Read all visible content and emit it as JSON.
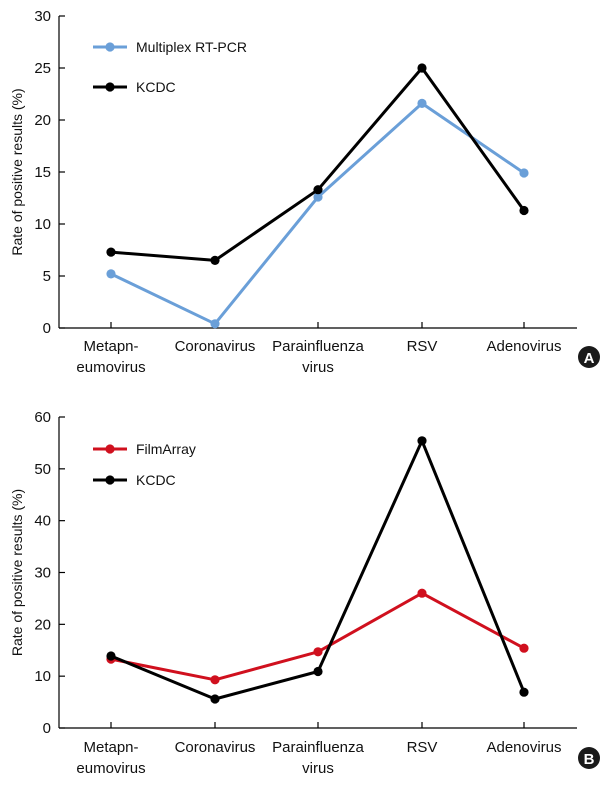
{
  "chart_data": [
    {
      "type": "line",
      "panel_label": "A",
      "categories": [
        [
          "Metapn-",
          "eumovirus"
        ],
        [
          "Coronavirus"
        ],
        [
          "Parainfluenza",
          "virus"
        ],
        [
          "RSV"
        ],
        [
          "Adenovirus"
        ]
      ],
      "ylabel": "Rate of positive results (%)",
      "ylim": [
        0,
        30
      ],
      "yticks": [
        "0",
        "5",
        "10",
        "15",
        "20",
        "25",
        "30"
      ],
      "legend_position": "top-left",
      "series": [
        {
          "name": "Multiplex RT-PCR",
          "color": "#6a9fd8",
          "values": [
            5.2,
            0.4,
            12.6,
            21.6,
            14.9
          ]
        },
        {
          "name": "KCDC",
          "color": "#000000",
          "values": [
            7.3,
            6.5,
            13.3,
            25.0,
            11.3
          ]
        }
      ]
    },
    {
      "type": "line",
      "panel_label": "B",
      "categories": [
        [
          "Metapn-",
          "eumovirus"
        ],
        [
          "Coronavirus"
        ],
        [
          "Parainfluenza",
          "virus"
        ],
        [
          "RSV"
        ],
        [
          "Adenovirus"
        ]
      ],
      "ylabel": "Rate of positive results (%)",
      "ylim": [
        0,
        60
      ],
      "yticks": [
        "0",
        "10",
        "20",
        "30",
        "40",
        "50",
        "60"
      ],
      "legend_position": "top-left",
      "series": [
        {
          "name": "FilmArray",
          "color": "#d0101e",
          "values": [
            13.3,
            9.3,
            14.7,
            26.0,
            15.4
          ]
        },
        {
          "name": "KCDC",
          "color": "#000000",
          "values": [
            13.9,
            5.6,
            10.9,
            55.4,
            6.9
          ]
        }
      ]
    }
  ]
}
